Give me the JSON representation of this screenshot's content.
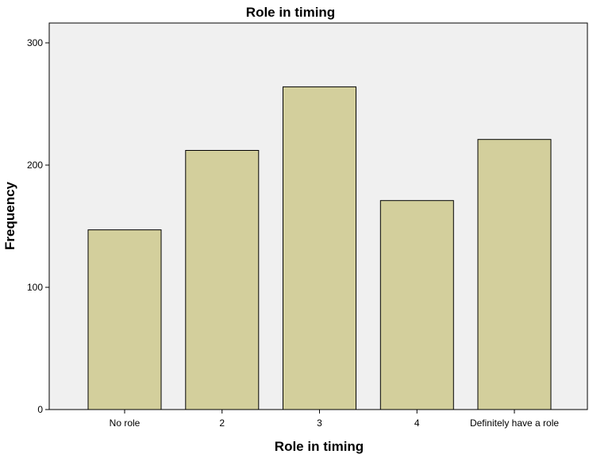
{
  "chart_data": {
    "type": "bar",
    "title": "Role in timing",
    "xlabel": "Role in timing",
    "ylabel": "Frequency",
    "categories": [
      "No role",
      "2",
      "3",
      "4",
      "Definitely have a role"
    ],
    "values": [
      147,
      212,
      264,
      171,
      221
    ],
    "ylim": [
      0,
      300
    ],
    "yticks": [
      0,
      100,
      200,
      300
    ],
    "grid": false,
    "legend": "none",
    "colors": {
      "bar_fill": "#d3cf9c",
      "bar_stroke": "#000000",
      "plot_background": "#f0f0f0",
      "page_background": "#ffffff"
    }
  }
}
